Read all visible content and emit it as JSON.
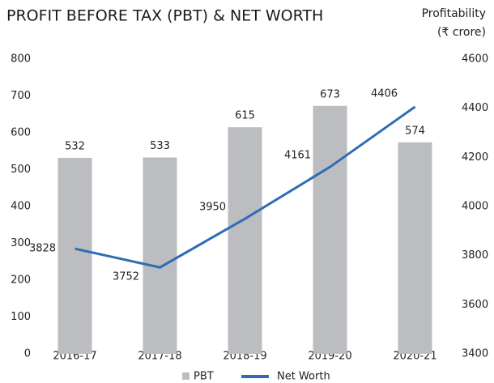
{
  "chart_data": {
    "type": "bar_line",
    "title": "PROFIT BEFORE TAX (PBT) & NET WORTH",
    "subtitle_lines": [
      "Profitability",
      "(₹ crore)"
    ],
    "categories": [
      "2016-17",
      "2017-18",
      "2018-19",
      "2019-20",
      "2020-21"
    ],
    "series": [
      {
        "name": "PBT",
        "color": "#bcbdc0",
        "type": "bar",
        "values": [
          532,
          533,
          615,
          673,
          574
        ]
      },
      {
        "name": "Net Worth",
        "color": "#2e6db4",
        "type": "line",
        "axis": "y2",
        "values": [
          3828,
          3752,
          3950,
          4161,
          4406
        ]
      }
    ],
    "ylim": [
      0,
      800
    ],
    "yticks": [
      0,
      100,
      200,
      300,
      400,
      500,
      600,
      700,
      800
    ],
    "y2lim": [
      3400,
      4600
    ],
    "y2ticks": [
      3400,
      3600,
      3800,
      4000,
      4200,
      4400,
      4600
    ],
    "grid": false
  }
}
